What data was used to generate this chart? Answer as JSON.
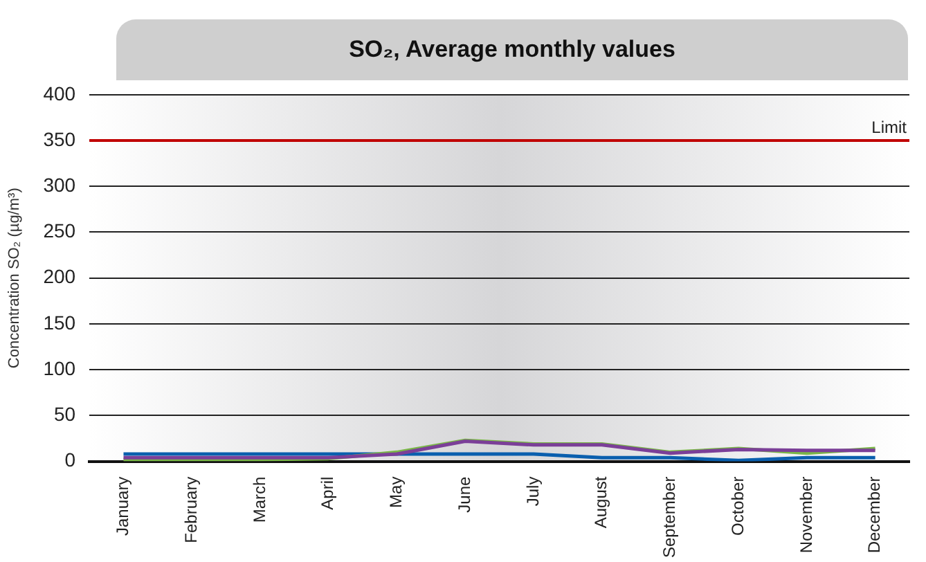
{
  "chart_data": {
    "type": "line",
    "title": "SO₂, Average monthly values",
    "ylabel": "Concentration SO₂ (µg/m³)",
    "categories": [
      "January",
      "February",
      "March",
      "April",
      "May",
      "June",
      "July",
      "August",
      "September",
      "October",
      "November",
      "December"
    ],
    "series": [
      {
        "color": "#7b3f98",
        "values": [
          4,
          4,
          4,
          4,
          8,
          22,
          18,
          18,
          9,
          13,
          12,
          12
        ]
      },
      {
        "color": "#7ab648",
        "values": [
          2,
          2,
          2,
          3,
          10,
          23,
          19,
          19,
          10,
          14,
          9,
          14
        ]
      },
      {
        "color": "#0a5fae",
        "values": [
          8,
          8,
          8,
          8,
          8,
          8,
          8,
          4,
          4,
          1,
          4,
          4
        ]
      }
    ],
    "ylim": [
      0,
      400
    ],
    "yticks": [
      0,
      50,
      100,
      150,
      200,
      250,
      300,
      350,
      400
    ],
    "grid": "y",
    "legend": false,
    "marker": "none",
    "line_style": "solid",
    "ref_lines": [
      {
        "axis": "y",
        "value": 350,
        "label": "Limit",
        "color": "#c00000"
      }
    ]
  }
}
